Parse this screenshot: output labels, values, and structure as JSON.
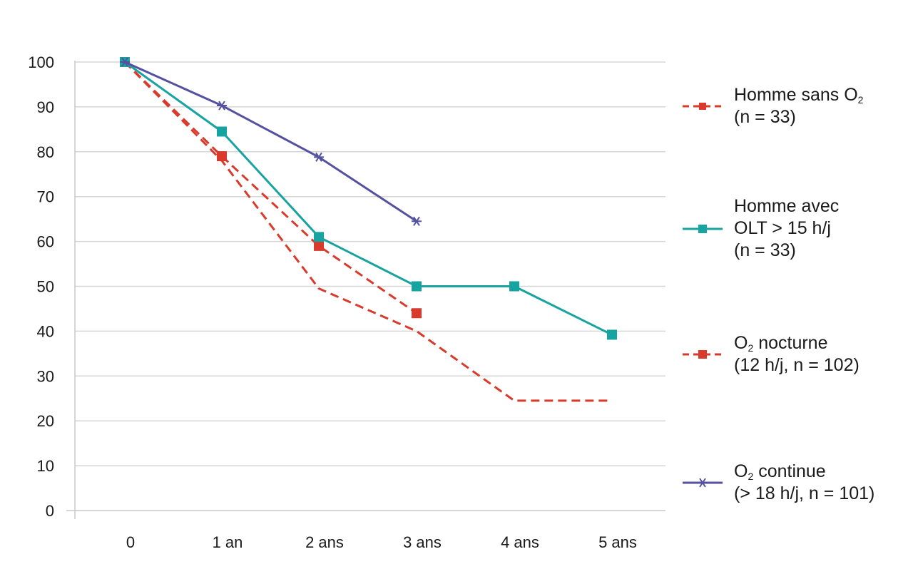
{
  "chart_data": {
    "type": "line",
    "categories": [
      "0",
      "1 an",
      "2 ans",
      "3 ans",
      "4 ans",
      "5 ans"
    ],
    "ylim": [
      0,
      100
    ],
    "yticks": [
      "0",
      "10",
      "20",
      "30",
      "40",
      "50",
      "60",
      "70",
      "80",
      "90",
      "100"
    ],
    "grid": true,
    "legend_position": "right",
    "series": [
      {
        "id": "s1",
        "name_lines": [
          "Homme sans O_2",
          "(n = 33)"
        ],
        "values": [
          100,
          78,
          49.5,
          40,
          24.5,
          24.5
        ],
        "color": "#d93a2b",
        "dash": true,
        "marker": "none"
      },
      {
        "id": "s2",
        "name_lines": [
          "Homme avec",
          "OLT > 15 h/j",
          "(n = 33)"
        ],
        "values": [
          100,
          84.5,
          61,
          50,
          50,
          39.2
        ],
        "color": "#17a3a0",
        "dash": false,
        "marker": "square"
      },
      {
        "id": "s3",
        "name_lines": [
          "O_2 nocturne",
          "(12 h/j, n = 102)"
        ],
        "values": [
          100,
          79,
          59,
          44,
          null,
          null
        ],
        "color": "#d93a2b",
        "dash": true,
        "marker": "square"
      },
      {
        "id": "s4",
        "name_lines": [
          "O_2 continue",
          "(> 18 h/j, n = 101)"
        ],
        "values": [
          100,
          90.3,
          78.8,
          64.5,
          null,
          null
        ],
        "color": "#5452a0",
        "dash": false,
        "marker": "star"
      }
    ]
  }
}
